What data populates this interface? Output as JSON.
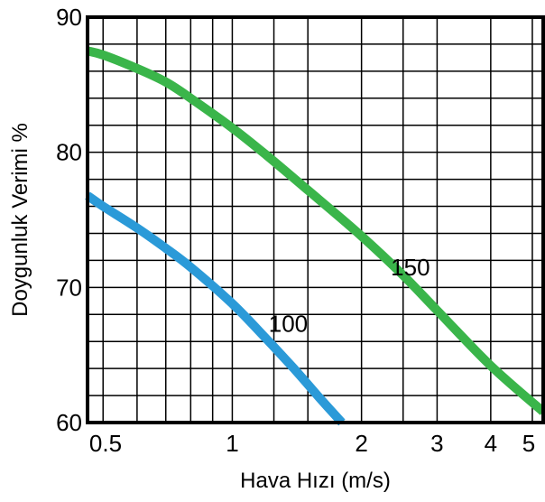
{
  "chart_data": {
    "type": "line",
    "xlabel": "Hava Hızı (m/s)",
    "ylabel": "Doygunluk Verimi %",
    "x_scale": "log",
    "xlim": [
      0.46,
      5.3
    ],
    "ylim": [
      60,
      90
    ],
    "grid": true,
    "x_ticks": [
      0.5,
      1,
      2,
      3,
      4,
      5
    ],
    "x_tick_labels": [
      "0.5",
      "1",
      "2",
      "3",
      "4",
      "5"
    ],
    "y_ticks": [
      60,
      70,
      80,
      90
    ],
    "y_tick_labels": [
      "60",
      "70",
      "80",
      "90"
    ],
    "x_minor_gridlines": [
      0.5,
      0.6,
      0.7,
      0.8,
      0.9,
      1,
      1.25,
      1.5,
      2,
      2.5,
      3,
      4,
      5
    ],
    "y_minor_step": 2,
    "series": [
      {
        "name": "150",
        "color": "#3ab54a",
        "x": [
          0.46,
          0.5,
          0.6,
          0.7,
          0.8,
          1.0,
          1.2,
          1.5,
          2.0,
          2.5,
          3.0,
          4.0,
          5.3
        ],
        "y": [
          87.5,
          87.2,
          86.2,
          85.2,
          84.0,
          81.8,
          79.8,
          77.2,
          73.8,
          70.9,
          68.3,
          64.2,
          60.8
        ]
      },
      {
        "name": "100",
        "color": "#2b9ad8",
        "x": [
          0.46,
          0.5,
          0.6,
          0.7,
          0.8,
          1.0,
          1.2,
          1.4,
          1.6,
          1.8
        ],
        "y": [
          76.8,
          76.0,
          74.4,
          72.9,
          71.5,
          68.8,
          66.2,
          63.9,
          61.8,
          60.0
        ]
      }
    ]
  }
}
